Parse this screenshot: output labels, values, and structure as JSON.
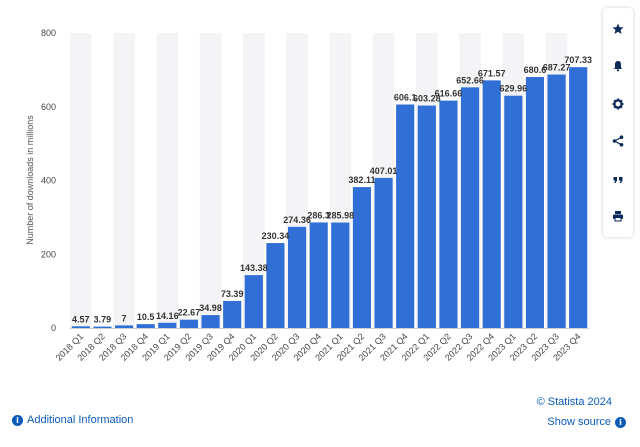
{
  "toolbar": {
    "icons": [
      "star-icon",
      "bell-icon",
      "gear-icon",
      "share-icon",
      "quote-icon",
      "print-icon"
    ]
  },
  "footer": {
    "additional_info": "Additional Information",
    "copyright": "© Statista 2024",
    "show_source": "Show source",
    "link_color": "#0b5bb8"
  },
  "chart_data": {
    "type": "bar",
    "bar_color": "#2f6fd6",
    "ylabel": "Number of downloads in millions",
    "xlabel": "",
    "ylim": [
      0,
      800
    ],
    "yticks": [
      0,
      200,
      400,
      600,
      800
    ],
    "categories": [
      "2018 Q1",
      "2018 Q2",
      "2018 Q3",
      "2018 Q4",
      "2019 Q1",
      "2019 Q2",
      "2019 Q3",
      "2019 Q4",
      "2020 Q1",
      "2020 Q2",
      "2020 Q3",
      "2020 Q4",
      "2021 Q1",
      "2021 Q2",
      "2021 Q3",
      "2021 Q4",
      "2022 Q1",
      "2022 Q2",
      "2022 Q3",
      "2022 Q4",
      "2023 Q1",
      "2023 Q2",
      "2023 Q3",
      "2023 Q4"
    ],
    "values": [
      4.57,
      3.79,
      7,
      10.5,
      14.16,
      22.67,
      34.98,
      73.39,
      143.38,
      230.34,
      274.36,
      286.3,
      285.98,
      382.11,
      407.01,
      606.1,
      603.28,
      616.66,
      652.66,
      671.57,
      629.96,
      680.6,
      687.27,
      707.33
    ],
    "labels": [
      "4.57",
      "3.79",
      "7",
      "10.5",
      "14.16",
      "22.67",
      "34.98",
      "73.39",
      "143.38",
      "230.34",
      "274.36",
      "286.3",
      "285.98",
      "382.11",
      "407.01",
      "606.1",
      "603.28",
      "616.66",
      "652.66",
      "671.57",
      "629.96",
      "680.6",
      "687.27",
      "707.33"
    ],
    "grid": false
  }
}
